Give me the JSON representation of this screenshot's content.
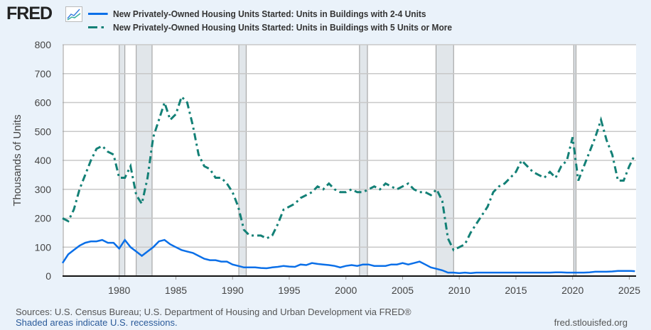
{
  "brand": "FRED",
  "colors": {
    "series1": "#0a6fe8",
    "series2": "#138076",
    "recession": "#e1e6ea",
    "grid": "#c8c8c8"
  },
  "chart_data": {
    "type": "line",
    "title": "",
    "ylabel": "Thousands of Units",
    "xlabel": "",
    "xlim": [
      1975,
      2025.6
    ],
    "ylim": [
      0,
      800
    ],
    "grid": true,
    "legend_position": "top",
    "x_ticks": [
      "1980",
      "1985",
      "1990",
      "1995",
      "2000",
      "2005",
      "2010",
      "2015",
      "2020",
      "2025"
    ],
    "y_ticks": [
      "0",
      "100",
      "200",
      "300",
      "400",
      "500",
      "600",
      "700",
      "800"
    ],
    "x_start": 1975,
    "x_step": 0.5,
    "recessions": [
      [
        1980.0,
        1980.5
      ],
      [
        1981.5,
        1982.9
      ],
      [
        1990.55,
        1991.2
      ],
      [
        2001.2,
        2001.9
      ],
      [
        2007.95,
        2009.5
      ],
      [
        2020.1,
        2020.3
      ]
    ],
    "series": [
      {
        "name": "New Privately-Owned Housing Units Started: Units in Buildings with 2-4 Units",
        "style": "solid",
        "values": [
          45,
          75,
          90,
          105,
          115,
          120,
          120,
          125,
          115,
          115,
          95,
          125,
          100,
          85,
          70,
          85,
          100,
          120,
          125,
          110,
          100,
          90,
          85,
          80,
          70,
          60,
          55,
          55,
          50,
          50,
          40,
          35,
          30,
          30,
          30,
          28,
          27,
          30,
          32,
          35,
          33,
          32,
          40,
          38,
          45,
          42,
          40,
          38,
          35,
          30,
          35,
          38,
          35,
          40,
          40,
          35,
          35,
          35,
          40,
          40,
          45,
          40,
          45,
          50,
          40,
          30,
          25,
          20,
          12,
          12,
          10,
          12,
          10,
          12,
          12,
          12,
          12,
          12,
          12,
          12,
          12,
          12,
          12,
          12,
          12,
          12,
          12,
          13,
          13,
          12,
          12,
          12,
          12,
          13,
          15,
          15,
          15,
          16,
          18,
          18,
          18,
          17
        ]
      },
      {
        "name": "New Privately-Owned Housing Units Started: Units in Buildings with 5 Units or More",
        "style": "dashed",
        "values": [
          200,
          190,
          230,
          300,
          350,
          400,
          440,
          450,
          430,
          420,
          340,
          340,
          380,
          280,
          250,
          340,
          480,
          540,
          600,
          540,
          560,
          620,
          600,
          520,
          420,
          380,
          370,
          340,
          340,
          320,
          290,
          240,
          160,
          140,
          140,
          140,
          130,
          140,
          180,
          230,
          240,
          250,
          270,
          280,
          290,
          310,
          300,
          320,
          300,
          290,
          290,
          300,
          290,
          290,
          300,
          310,
          300,
          320,
          310,
          300,
          310,
          320,
          300,
          290,
          290,
          280,
          300,
          260,
          130,
          90,
          100,
          110,
          150,
          180,
          210,
          240,
          290,
          310,
          320,
          340,
          360,
          400,
          380,
          360,
          350,
          340,
          360,
          340,
          380,
          400,
          480,
          330,
          380,
          430,
          480,
          540,
          470,
          420,
          330,
          330,
          380,
          420
        ]
      }
    ]
  },
  "footer": {
    "sources": "Sources: U.S. Census Bureau; U.S. Department of Housing and Urban Development via FRED®",
    "recession_note": "Shaded areas indicate U.S. recessions.",
    "site": "fred.stlouisfed.org"
  }
}
